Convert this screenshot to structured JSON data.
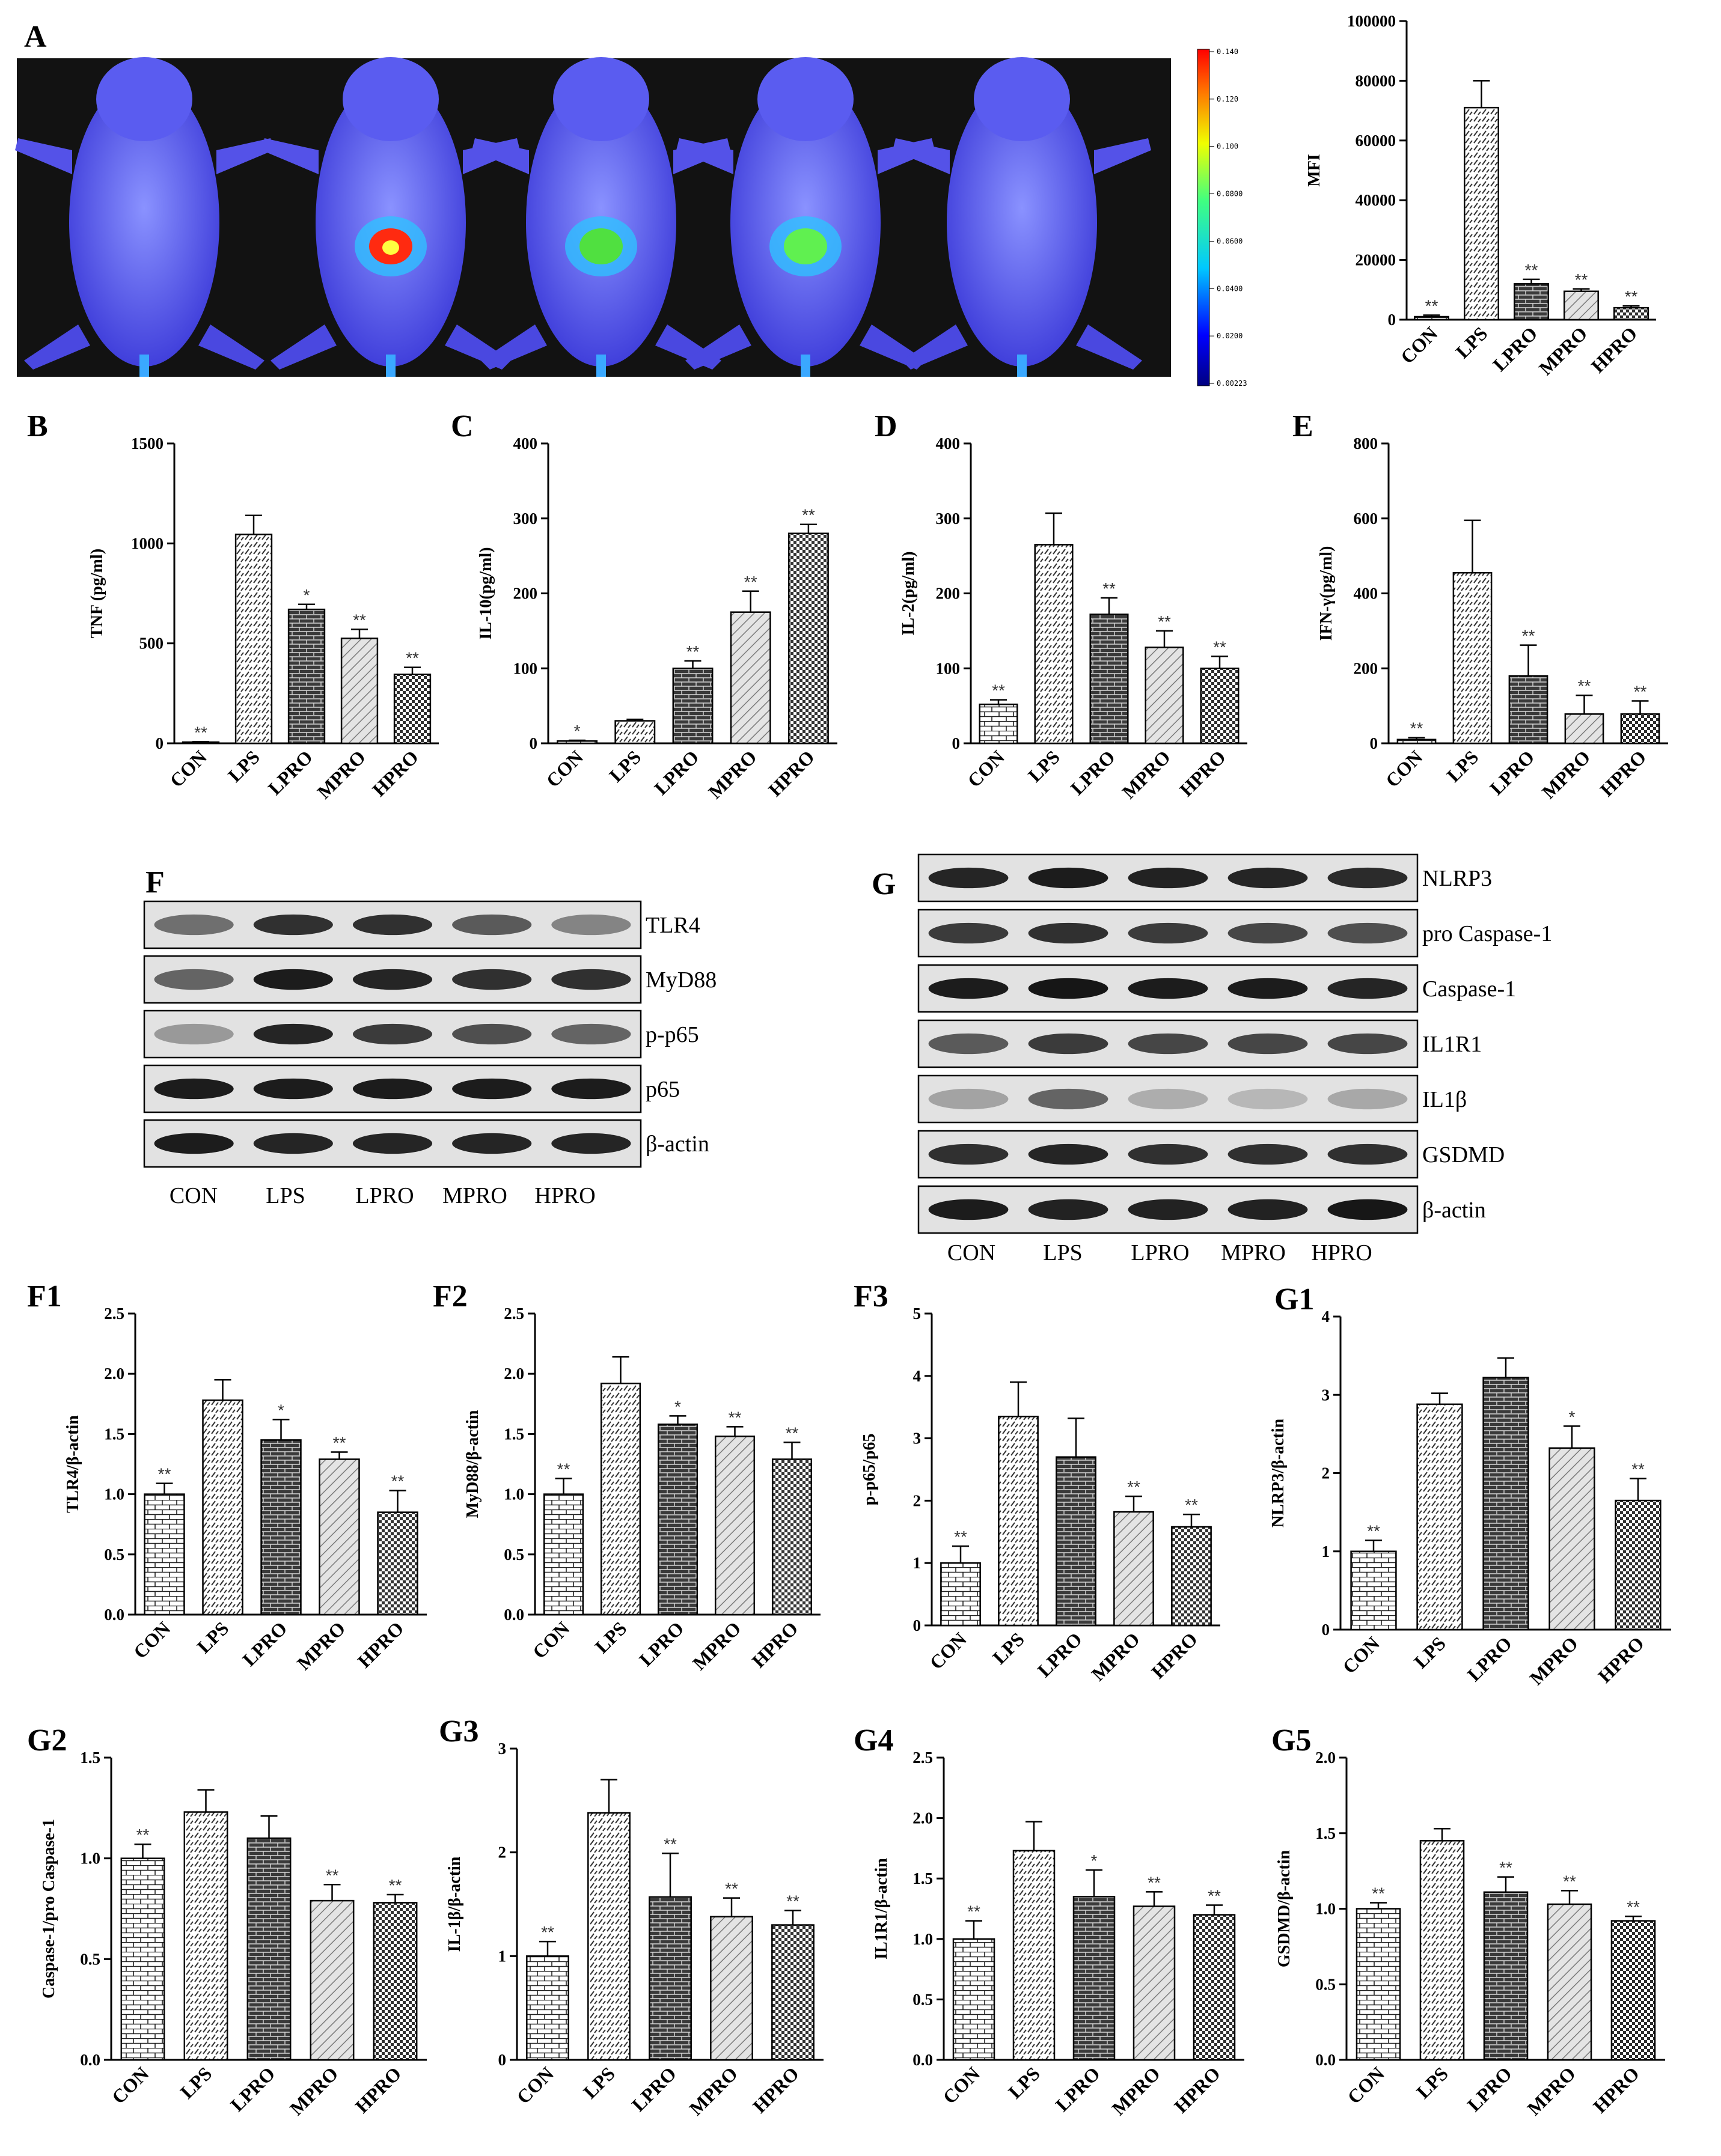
{
  "imaging": {
    "panel_label": "A",
    "colorbar_ticks": [
      "0.140",
      "0.120",
      "0.100",
      "0.0800",
      "0.0600",
      "0.0400",
      "0.0200",
      "0.00223"
    ],
    "mice": [
      "CON",
      "LPS",
      "LPRO",
      "MPRO",
      "HPRO"
    ],
    "hotspot_colors": [
      "none",
      "#ff2a10",
      "#50e040",
      "#60f050",
      "none"
    ]
  },
  "blots": {
    "F": {
      "panel_label": "F",
      "rows": [
        "TLR4",
        "MyD88",
        "p-p65",
        "p65",
        "β-actin"
      ],
      "lanes": [
        "CON",
        "LPS",
        "LPRO",
        "MPRO",
        "HPRO"
      ]
    },
    "G": {
      "panel_label": "G",
      "rows": [
        "NLRP3",
        "pro Caspase-1",
        "Caspase-1",
        "IL1R1",
        "IL1β",
        "GSDMD",
        "β-actin"
      ],
      "lanes": [
        "CON",
        "LPS",
        "LPRO",
        "MPRO",
        "HPRO"
      ]
    }
  },
  "chart_data": [
    {
      "id": "A",
      "panel_label": "",
      "type": "bar",
      "ylabel": "MFI",
      "categories": [
        "CON",
        "LPS",
        "LPRO",
        "MPRO",
        "HPRO"
      ],
      "values": [
        1000,
        71000,
        12000,
        9500,
        4000
      ],
      "errors": [
        500,
        9000,
        1500,
        800,
        600
      ],
      "stars": [
        "**",
        "",
        "**",
        "**",
        "**"
      ],
      "ylim": [
        0,
        100000
      ],
      "yticks": [
        "0",
        "20000",
        "40000",
        "60000",
        "80000",
        "100000"
      ]
    },
    {
      "id": "B",
      "panel_label": "B",
      "type": "bar",
      "ylabel": "TNF (pg/ml)",
      "categories": [
        "CON",
        "LPS",
        "LPRO",
        "MPRO",
        "HPRO"
      ],
      "values": [
        5,
        1045,
        670,
        525,
        345
      ],
      "errors": [
        3,
        95,
        25,
        45,
        35
      ],
      "stars": [
        "**",
        "",
        "*",
        "**",
        "**"
      ],
      "ylim": [
        0,
        1500
      ],
      "yticks": [
        "0",
        "500",
        "1000",
        "1500"
      ]
    },
    {
      "id": "C",
      "panel_label": "C",
      "type": "bar",
      "ylabel": "IL-10(pg/ml)",
      "categories": [
        "CON",
        "LPS",
        "LPRO",
        "MPRO",
        "HPRO"
      ],
      "values": [
        3,
        30,
        100,
        175,
        280
      ],
      "errors": [
        1,
        2,
        10,
        28,
        12
      ],
      "stars": [
        "*",
        "",
        "**",
        "**",
        "**"
      ],
      "ylim": [
        0,
        400
      ],
      "yticks": [
        "0",
        "100",
        "200",
        "300",
        "400"
      ]
    },
    {
      "id": "D",
      "panel_label": "D",
      "type": "bar",
      "ylabel": "IL-2(pg/ml)",
      "categories": [
        "CON",
        "LPS",
        "LPRO",
        "MPRO",
        "HPRO"
      ],
      "values": [
        52,
        265,
        172,
        128,
        100
      ],
      "errors": [
        6,
        42,
        22,
        22,
        16
      ],
      "stars": [
        "**",
        "",
        "**",
        "**",
        "**"
      ],
      "ylim": [
        0,
        400
      ],
      "yticks": [
        "0",
        "100",
        "200",
        "300",
        "400"
      ]
    },
    {
      "id": "E",
      "panel_label": "E",
      "type": "bar",
      "ylabel": "IFN-γ(pg/ml)",
      "categories": [
        "CON",
        "LPS",
        "LPRO",
        "MPRO",
        "HPRO"
      ],
      "values": [
        10,
        455,
        180,
        78,
        78
      ],
      "errors": [
        5,
        140,
        82,
        50,
        35
      ],
      "stars": [
        "**",
        "",
        "**",
        "**",
        "**"
      ],
      "ylim": [
        0,
        800
      ],
      "yticks": [
        "0",
        "200",
        "400",
        "600",
        "800"
      ]
    },
    {
      "id": "F1",
      "panel_label": "F1",
      "type": "bar",
      "ylabel": "TLR4/β-actin",
      "categories": [
        "CON",
        "LPS",
        "LPRO",
        "MPRO",
        "HPRO"
      ],
      "values": [
        1.0,
        1.78,
        1.45,
        1.29,
        0.85
      ],
      "errors": [
        0.09,
        0.17,
        0.17,
        0.06,
        0.18
      ],
      "stars": [
        "**",
        "",
        "*",
        "**",
        "**"
      ],
      "ylim": [
        0,
        2.5
      ],
      "yticks": [
        "0.0",
        "0.5",
        "1.0",
        "1.5",
        "2.0",
        "2.5"
      ]
    },
    {
      "id": "F2",
      "panel_label": "F2",
      "type": "bar",
      "ylabel": "MyD88/β-actin",
      "categories": [
        "CON",
        "LPS",
        "LPRO",
        "MPRO",
        "HPRO"
      ],
      "values": [
        1.0,
        1.92,
        1.58,
        1.48,
        1.29
      ],
      "errors": [
        0.13,
        0.22,
        0.07,
        0.08,
        0.14
      ],
      "stars": [
        "**",
        "",
        "*",
        "**",
        "**"
      ],
      "ylim": [
        0,
        2.5
      ],
      "yticks": [
        "0.0",
        "0.5",
        "1.0",
        "1.5",
        "2.0",
        "2.5"
      ]
    },
    {
      "id": "F3",
      "panel_label": "F3",
      "type": "bar",
      "ylabel": "p-p65/p65",
      "categories": [
        "CON",
        "LPS",
        "LPRO",
        "MPRO",
        "HPRO"
      ],
      "values": [
        1.0,
        3.35,
        2.7,
        1.82,
        1.58
      ],
      "errors": [
        0.27,
        0.55,
        0.62,
        0.25,
        0.2
      ],
      "stars": [
        "**",
        "",
        "",
        "**",
        "**"
      ],
      "ylim": [
        0,
        5
      ],
      "yticks": [
        "0",
        "1",
        "2",
        "3",
        "4",
        "5"
      ]
    },
    {
      "id": "G1",
      "panel_label": "G1",
      "type": "bar",
      "ylabel": "NLRP3/β-actin",
      "categories": [
        "CON",
        "LPS",
        "LPRO",
        "MPRO",
        "HPRO"
      ],
      "values": [
        1.0,
        2.88,
        3.22,
        2.32,
        1.65
      ],
      "errors": [
        0.14,
        0.14,
        0.25,
        0.28,
        0.28
      ],
      "stars": [
        "**",
        "",
        "",
        "*",
        "**"
      ],
      "ylim": [
        0,
        4
      ],
      "yticks": [
        "0",
        "1",
        "2",
        "3",
        "4"
      ]
    },
    {
      "id": "G2",
      "panel_label": "G2",
      "type": "bar",
      "ylabel": "Caspase-1/pro Caspase-1",
      "categories": [
        "CON",
        "LPS",
        "LPRO",
        "MPRO",
        "HPRO"
      ],
      "values": [
        1.0,
        1.23,
        1.1,
        0.79,
        0.78
      ],
      "errors": [
        0.07,
        0.11,
        0.11,
        0.08,
        0.04
      ],
      "stars": [
        "**",
        "",
        "",
        "**",
        "**"
      ],
      "ylim": [
        0,
        1.5
      ],
      "yticks": [
        "0.0",
        "0.5",
        "1.0",
        "1.5"
      ]
    },
    {
      "id": "G3",
      "panel_label": "G3",
      "type": "bar",
      "ylabel": "IL-1β/β-actin",
      "categories": [
        "CON",
        "LPS",
        "LPRO",
        "MPRO",
        "HPRO"
      ],
      "values": [
        1.0,
        2.38,
        1.57,
        1.38,
        1.3
      ],
      "errors": [
        0.14,
        0.32,
        0.42,
        0.18,
        0.14
      ],
      "stars": [
        "**",
        "",
        "**",
        "**",
        "**"
      ],
      "ylim": [
        0,
        3
      ],
      "yticks": [
        "0",
        "1",
        "2",
        "3"
      ]
    },
    {
      "id": "G4",
      "panel_label": "G4",
      "type": "bar",
      "ylabel": "IL1R1/β-actin",
      "categories": [
        "CON",
        "LPS",
        "LPRO",
        "MPRO",
        "HPRO"
      ],
      "values": [
        1.0,
        1.73,
        1.35,
        1.27,
        1.2
      ],
      "errors": [
        0.15,
        0.24,
        0.22,
        0.12,
        0.08
      ],
      "stars": [
        "**",
        "",
        "*",
        "**",
        "**"
      ],
      "ylim": [
        0,
        2.5
      ],
      "yticks": [
        "0.0",
        "0.5",
        "1.0",
        "1.5",
        "2.0",
        "2.5"
      ]
    },
    {
      "id": "G5",
      "panel_label": "G5",
      "type": "bar",
      "ylabel": "GSDMD/β-actin",
      "categories": [
        "CON",
        "LPS",
        "LPRO",
        "MPRO",
        "HPRO"
      ],
      "values": [
        1.0,
        1.45,
        1.11,
        1.03,
        0.92
      ],
      "errors": [
        0.04,
        0.08,
        0.1,
        0.09,
        0.03
      ],
      "stars": [
        "**",
        "",
        "**",
        "**",
        "**"
      ],
      "ylim": [
        0,
        2.0
      ],
      "yticks": [
        "0.0",
        "0.5",
        "1.0",
        "1.5",
        "2.0"
      ]
    }
  ]
}
